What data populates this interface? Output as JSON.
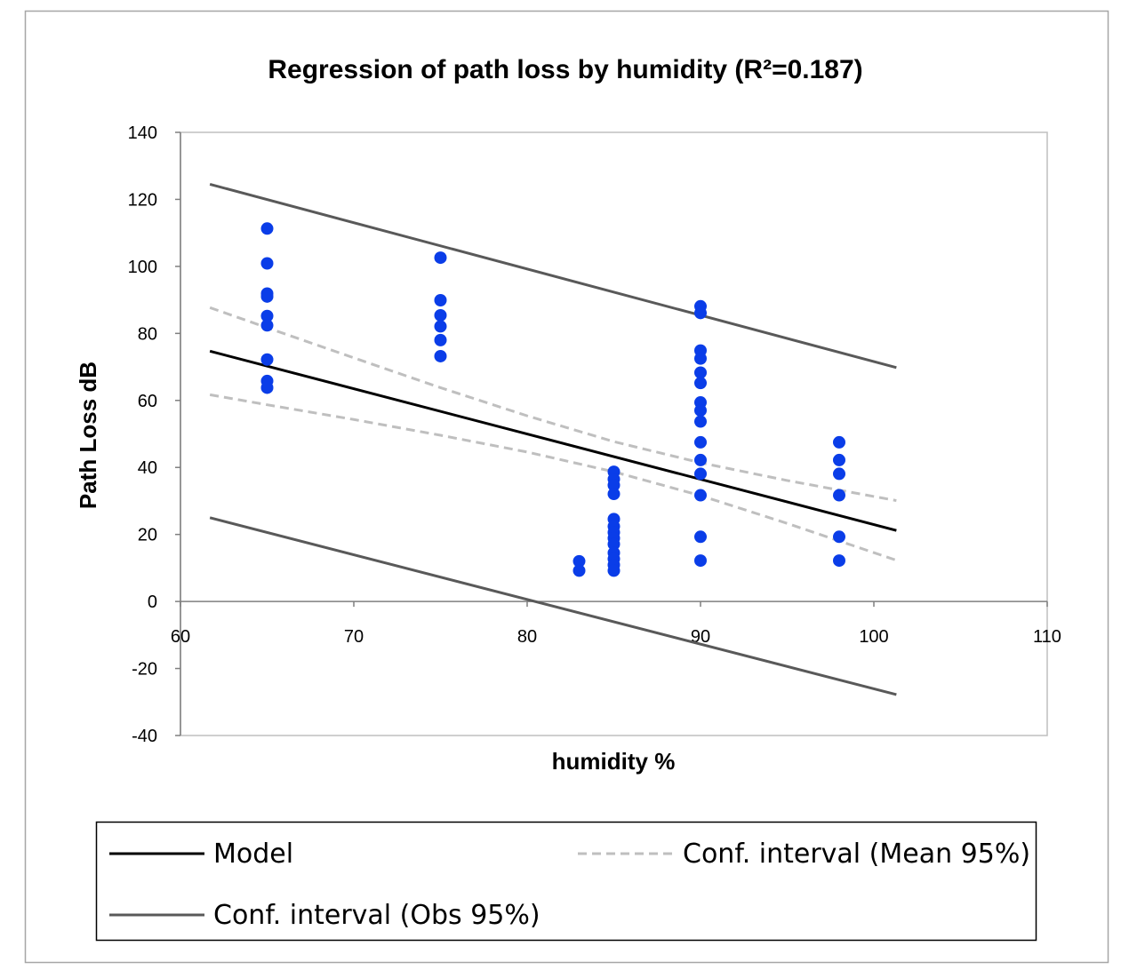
{
  "chart_data": {
    "type": "scatter",
    "title": "Regression of path loss by humidity (R²=0.187)",
    "xlabel": "humidity %",
    "ylabel": "Path Loss dB",
    "xlim": [
      60,
      110
    ],
    "ylim": [
      -40,
      140
    ],
    "xticks": [
      60,
      70,
      80,
      90,
      100,
      110
    ],
    "yticks": [
      -40,
      -20,
      0,
      20,
      40,
      60,
      80,
      100,
      120,
      140
    ],
    "grid": false,
    "legend_position": "bottom",
    "colors": {
      "points": "#0a3de8",
      "model": "#000000",
      "mean_ci": "#bfbfbf",
      "obs_ci": "#595959"
    },
    "points": [
      {
        "x": 65,
        "y": 111.3
      },
      {
        "x": 65,
        "y": 100.9
      },
      {
        "x": 65,
        "y": 91.9
      },
      {
        "x": 65,
        "y": 91.0
      },
      {
        "x": 65,
        "y": 85.2
      },
      {
        "x": 65,
        "y": 82.4
      },
      {
        "x": 65,
        "y": 72.2
      },
      {
        "x": 65,
        "y": 65.8
      },
      {
        "x": 65,
        "y": 63.8
      },
      {
        "x": 75,
        "y": 102.6
      },
      {
        "x": 75,
        "y": 89.9
      },
      {
        "x": 75,
        "y": 85.4
      },
      {
        "x": 75,
        "y": 82.1
      },
      {
        "x": 75,
        "y": 78.0
      },
      {
        "x": 75,
        "y": 73.2
      },
      {
        "x": 83,
        "y": 12.0
      },
      {
        "x": 83,
        "y": 9.2
      },
      {
        "x": 85,
        "y": 38.7
      },
      {
        "x": 85,
        "y": 36.5
      },
      {
        "x": 85,
        "y": 34.7
      },
      {
        "x": 85,
        "y": 32.1
      },
      {
        "x": 85,
        "y": 24.6
      },
      {
        "x": 85,
        "y": 22.4
      },
      {
        "x": 85,
        "y": 20.6
      },
      {
        "x": 85,
        "y": 18.9
      },
      {
        "x": 85,
        "y": 17.1
      },
      {
        "x": 85,
        "y": 14.5
      },
      {
        "x": 85,
        "y": 12.7
      },
      {
        "x": 85,
        "y": 10.9
      },
      {
        "x": 85,
        "y": 9.2
      },
      {
        "x": 90,
        "y": 88.1
      },
      {
        "x": 90,
        "y": 86.1
      },
      {
        "x": 90,
        "y": 74.9
      },
      {
        "x": 90,
        "y": 72.5
      },
      {
        "x": 90,
        "y": 68.3
      },
      {
        "x": 90,
        "y": 65.2
      },
      {
        "x": 90,
        "y": 59.4
      },
      {
        "x": 90,
        "y": 57.0
      },
      {
        "x": 90,
        "y": 53.7
      },
      {
        "x": 90,
        "y": 47.5
      },
      {
        "x": 90,
        "y": 42.2
      },
      {
        "x": 90,
        "y": 38.1
      },
      {
        "x": 90,
        "y": 31.7
      },
      {
        "x": 90,
        "y": 19.3
      },
      {
        "x": 90,
        "y": 12.2
      },
      {
        "x": 98,
        "y": 47.5
      },
      {
        "x": 98,
        "y": 42.2
      },
      {
        "x": 98,
        "y": 38.1
      },
      {
        "x": 98,
        "y": 31.7
      },
      {
        "x": 98,
        "y": 19.3
      },
      {
        "x": 98,
        "y": 12.2
      }
    ],
    "series": [
      {
        "name": "Model",
        "style": "solid",
        "x": [
          61.7,
          101.3
        ],
        "y": [
          74.7,
          21.2
        ]
      },
      {
        "name": "Conf. interval (Mean 95%)",
        "style": "dashed",
        "x": [
          61.7,
          65,
          70,
          75,
          80,
          85,
          90,
          95,
          101.3
        ],
        "y": [
          87.7,
          81.7,
          72.7,
          63.8,
          55.4,
          47.7,
          41.4,
          36.1,
          30.1
        ]
      },
      {
        "name": "Conf. interval (Mean 95%)",
        "style": "dashed",
        "x": [
          61.7,
          65,
          70,
          75,
          80,
          85,
          90,
          95,
          101.3
        ],
        "y": [
          61.7,
          58.7,
          54.3,
          49.6,
          44.6,
          38.7,
          31.6,
          23.3,
          12.3
        ]
      },
      {
        "name": "Conf. interval (Obs 95%)",
        "style": "solid",
        "x": [
          61.7,
          101.3
        ],
        "y": [
          124.5,
          69.8
        ]
      },
      {
        "name": "Conf. interval (Obs 95%)",
        "style": "solid",
        "x": [
          61.7,
          101.3
        ],
        "y": [
          25.0,
          -27.8
        ]
      }
    ],
    "legend": [
      "Model",
      "Conf. interval (Mean 95%)",
      "Conf. interval (Obs 95%)"
    ]
  }
}
